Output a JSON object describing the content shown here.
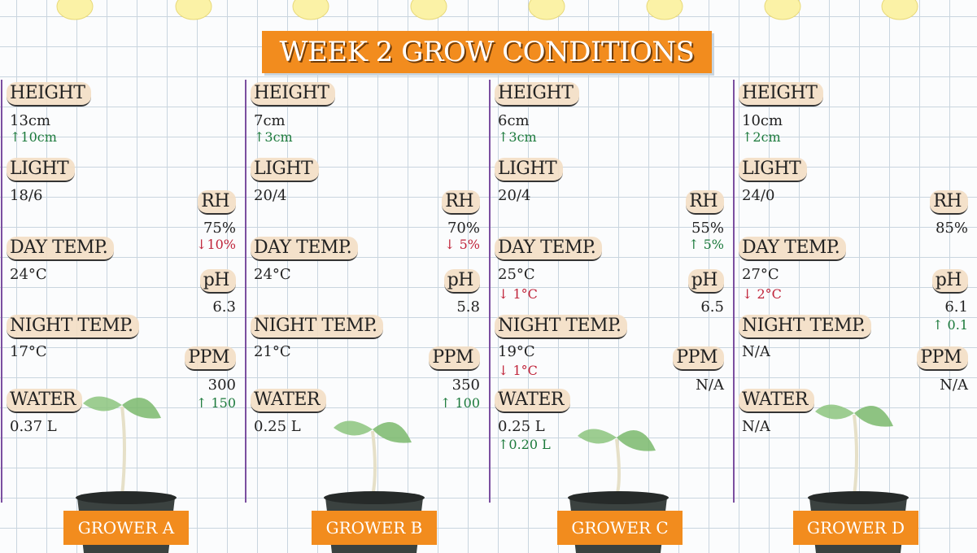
{
  "title": "WEEK 2 GROW CONDITIONS",
  "growers": [
    {
      "name": "GROWER A",
      "metrics": {
        "height": {
          "label": "HEIGHT",
          "value": "13cm",
          "change": "↑10cm"
        },
        "light": {
          "label": "LIGHT",
          "value": "18/6"
        },
        "rh": {
          "label": "RH",
          "value": "75%",
          "change": "↓10%"
        },
        "day_temp": {
          "label": "DAY TEMP.",
          "value": "24°C"
        },
        "ph": {
          "label": "pH",
          "value": "6.3"
        },
        "night_temp": {
          "label": "NIGHT TEMP.",
          "value": "17°C"
        },
        "ppm": {
          "label": "PPM",
          "value": "300",
          "change": "↑ 150"
        },
        "water": {
          "label": "WATER",
          "value": "0.37 L"
        }
      }
    },
    {
      "name": "GROWER B",
      "metrics": {
        "height": {
          "label": "HEIGHT",
          "value": "7cm",
          "change": "↑3cm"
        },
        "light": {
          "label": "LIGHT",
          "value": "20/4"
        },
        "rh": {
          "label": "RH",
          "value": "70%",
          "change": "↓ 5%"
        },
        "day_temp": {
          "label": "DAY TEMP.",
          "value": "24°C"
        },
        "ph": {
          "label": "pH",
          "value": "5.8"
        },
        "night_temp": {
          "label": "NIGHT TEMP.",
          "value": "21°C"
        },
        "ppm": {
          "label": "PPM",
          "value": "350",
          "change": "↑ 100"
        },
        "water": {
          "label": "WATER",
          "value": "0.25 L"
        }
      }
    },
    {
      "name": "GROWER C",
      "metrics": {
        "height": {
          "label": "HEIGHT",
          "value": "6cm",
          "change": "↑3cm"
        },
        "light": {
          "label": "LIGHT",
          "value": "20/4"
        },
        "rh": {
          "label": "RH",
          "value": "55%",
          "change": "↑ 5%"
        },
        "day_temp": {
          "label": "DAY TEMP.",
          "value": "25°C",
          "change": "↓ 1°C"
        },
        "ph": {
          "label": "pH",
          "value": "6.5"
        },
        "night_temp": {
          "label": "NIGHT TEMP.",
          "value": "19°C",
          "change": "↓ 1°C"
        },
        "ppm": {
          "label": "PPM",
          "value": "N/A"
        },
        "water": {
          "label": "WATER",
          "value": "0.25 L",
          "change": "↑0.20 L"
        }
      }
    },
    {
      "name": "GROWER D",
      "metrics": {
        "height": {
          "label": "HEIGHT",
          "value": "10cm",
          "change": "↑2cm"
        },
        "light": {
          "label": "LIGHT",
          "value": "24/0"
        },
        "rh": {
          "label": "RH",
          "value": "85%"
        },
        "day_temp": {
          "label": "DAY TEMP.",
          "value": "27°C",
          "change": "↓ 2°C"
        },
        "ph": {
          "label": "pH",
          "value": "6.1",
          "change": "↑ 0.1"
        },
        "night_temp": {
          "label": "NIGHT TEMP.",
          "value": "N/A"
        },
        "ppm": {
          "label": "PPM",
          "value": "N/A"
        },
        "water": {
          "label": "WATER",
          "value": "N/A"
        }
      }
    }
  ]
}
